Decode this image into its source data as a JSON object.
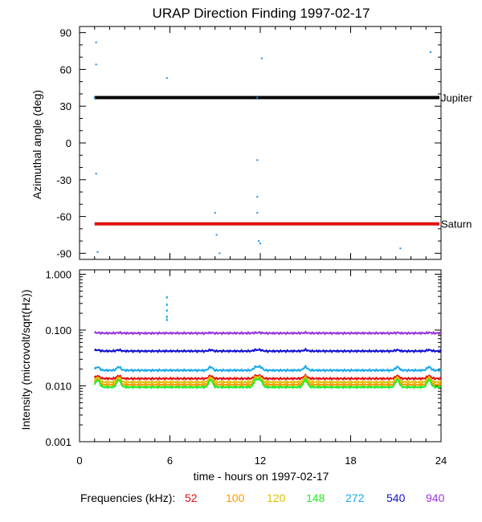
{
  "chart_data": [
    {
      "type": "scatter",
      "title": "URAP Direction Finding  1997-02-17",
      "ylabel": "Azimuthal angle (deg)",
      "xlim": [
        0,
        24
      ],
      "ylim": [
        -95,
        95
      ],
      "yticks": [
        -90,
        -60,
        -30,
        0,
        30,
        60,
        90
      ],
      "ytick_labels": [
        "-90",
        "-60",
        "-30",
        "0",
        "30",
        "60",
        "90"
      ],
      "reference_lines": [
        {
          "name": "Jupiter",
          "y": 37,
          "x_range": [
            1,
            24
          ],
          "color": "#000000"
        },
        {
          "name": "Saturn",
          "y": -66,
          "x_range": [
            1,
            24
          ],
          "color": "#e01010"
        }
      ],
      "points": [
        {
          "x": 1.0,
          "y": 37
        },
        {
          "x": 1.1,
          "y": 82
        },
        {
          "x": 1.1,
          "y": 64
        },
        {
          "x": 1.1,
          "y": -25
        },
        {
          "x": 1.2,
          "y": -89
        },
        {
          "x": 5.8,
          "y": 53
        },
        {
          "x": 9.0,
          "y": -57
        },
        {
          "x": 9.1,
          "y": -75
        },
        {
          "x": 9.3,
          "y": -90
        },
        {
          "x": 11.8,
          "y": 37
        },
        {
          "x": 11.8,
          "y": -14
        },
        {
          "x": 11.8,
          "y": -44
        },
        {
          "x": 11.8,
          "y": -57
        },
        {
          "x": 11.9,
          "y": -80
        },
        {
          "x": 12.0,
          "y": -82
        },
        {
          "x": 12.1,
          "y": 69
        },
        {
          "x": 21.3,
          "y": -86
        },
        {
          "x": 23.3,
          "y": 74
        }
      ],
      "point_color": "#1a8ee8",
      "grid": false
    },
    {
      "type": "line",
      "ylabel": "Intensity (microvolt/sqrt(Hz))",
      "xlabel": "time - hours on 1997-02-17",
      "xlim": [
        0,
        24
      ],
      "xticks": [
        0,
        6,
        12,
        18,
        24
      ],
      "xtick_labels": [
        "0",
        "6",
        "12",
        "18",
        "24"
      ],
      "ylim": [
        0.001,
        1.2
      ],
      "yscale": "log",
      "yticks": [
        0.001,
        0.01,
        0.1,
        1.0
      ],
      "ytick_labels": [
        "0.001",
        "0.010",
        "0.100",
        "1.000"
      ],
      "legend_title": "Frequencies (kHz):",
      "series": [
        {
          "name": "52",
          "color": "#e01010",
          "level": 0.0135
        },
        {
          "name": "100",
          "color": "#ff9900",
          "level": 0.0105
        },
        {
          "name": "120",
          "color": "#e0c000",
          "level": 0.0117
        },
        {
          "name": "148",
          "color": "#22ee22",
          "level": 0.0095
        },
        {
          "name": "272",
          "color": "#18a8e8",
          "level": 0.019
        },
        {
          "name": "540",
          "color": "#1010d0",
          "level": 0.042
        },
        {
          "name": "940",
          "color": "#9933dd",
          "level": 0.088
        }
      ],
      "bumps": [
        1.2,
        2.6,
        8.7,
        11.7,
        12.0,
        15.0,
        21.1,
        23.2
      ],
      "spike": {
        "x": 5.8,
        "values": [
          0.15,
          0.17,
          0.22,
          0.28,
          0.38
        ],
        "color": "#18a8e8"
      },
      "grid": false
    }
  ]
}
